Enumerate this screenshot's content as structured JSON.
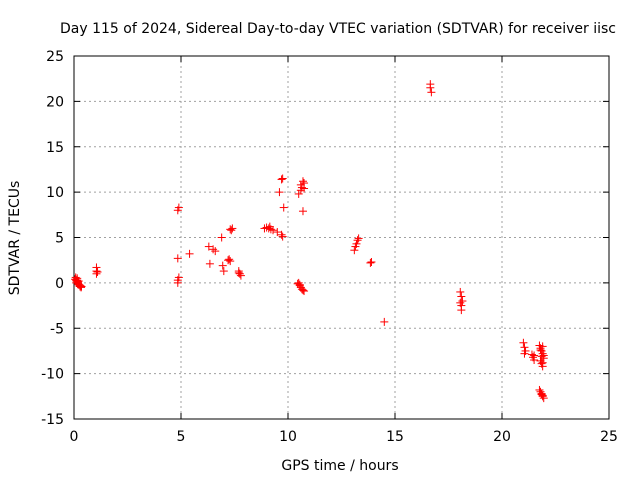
{
  "chart_data": {
    "type": "scatter",
    "title": "Day 115 of 2024, Sidereal Day-to-day VTEC variation (SDTVAR) for receiver iisc",
    "xlabel": "GPS time / hours",
    "ylabel": "SDTVAR / TECUs",
    "xlim": [
      0,
      25
    ],
    "ylim": [
      -15,
      25
    ],
    "xticks": [
      0,
      5,
      10,
      15,
      20,
      25
    ],
    "yticks": [
      -15,
      -10,
      -5,
      0,
      5,
      10,
      15,
      20,
      25
    ],
    "xtick_labels": [
      "0",
      "5",
      "10",
      "15",
      "20",
      "25"
    ],
    "ytick_labels": [
      "-15",
      "-10",
      "-5",
      "0",
      "5",
      "10",
      "15",
      "20",
      "25"
    ],
    "grid": true,
    "marker": "plus",
    "color": "#ff0000",
    "series": [
      {
        "name": "SDTVAR",
        "x": [
          0.05,
          0.08,
          0.1,
          0.12,
          0.15,
          0.18,
          0.2,
          0.22,
          0.25,
          0.28,
          0.3,
          0.33,
          0.35,
          0.1,
          0.15,
          0.2,
          1.05,
          1.05,
          1.05,
          1.1,
          4.85,
          4.9,
          4.85,
          4.9,
          4.85,
          4.85,
          5.4,
          6.3,
          6.35,
          6.5,
          6.6,
          6.9,
          6.95,
          7.0,
          7.2,
          7.25,
          7.3,
          7.35,
          7.4,
          7.3,
          7.7,
          7.75,
          7.8,
          7.7,
          8.9,
          9.0,
          9.1,
          9.15,
          9.2,
          9.3,
          9.5,
          9.6,
          9.7,
          9.75,
          9.8,
          9.7,
          9.75,
          10.45,
          10.5,
          10.55,
          10.6,
          10.65,
          10.7,
          10.75,
          10.55,
          10.6,
          10.65,
          10.7,
          10.75,
          10.5,
          10.6,
          10.7,
          10.75,
          13.1,
          13.15,
          13.2,
          13.25,
          13.3,
          13.85,
          13.9,
          14.5,
          16.65,
          16.65,
          16.7,
          18.05,
          18.1,
          18.15,
          18.1,
          18.1,
          18.05,
          21.0,
          21.05,
          21.1,
          21.05,
          21.4,
          21.45,
          21.5,
          21.5,
          21.75,
          21.8,
          21.85,
          21.9,
          21.95,
          21.8,
          21.85,
          21.9,
          21.95,
          21.8,
          21.85,
          21.9,
          21.9,
          21.75,
          21.8,
          21.85,
          21.9,
          21.95,
          21.85,
          21.9
        ],
        "y": [
          0.4,
          0.6,
          0.3,
          0.2,
          0.5,
          0.1,
          -0.1,
          0.2,
          -0.2,
          -0.4,
          -0.3,
          -0.5,
          -0.4,
          0.0,
          0.3,
          -0.2,
          1.0,
          1.3,
          1.7,
          1.2,
          8.0,
          8.3,
          2.7,
          0.6,
          0.0,
          0.3,
          3.2,
          4.0,
          2.1,
          3.7,
          3.5,
          5.0,
          1.9,
          1.3,
          2.5,
          2.6,
          2.4,
          5.8,
          6.0,
          5.9,
          1.3,
          1.0,
          0.8,
          1.1,
          6.0,
          6.1,
          6.0,
          6.2,
          5.9,
          5.8,
          5.6,
          10.0,
          11.4,
          11.5,
          8.3,
          5.3,
          5.1,
          -0.1,
          0.0,
          -0.3,
          -0.5,
          -0.7,
          -0.8,
          -0.9,
          -0.2,
          10.2,
          10.5,
          11.2,
          11.0,
          9.8,
          10.8,
          7.9,
          10.4,
          3.6,
          4.0,
          4.3,
          4.7,
          4.9,
          2.2,
          2.3,
          -4.3,
          21.9,
          21.5,
          21.0,
          -1.0,
          -1.5,
          -2.0,
          -2.5,
          -3.0,
          -2.2,
          -6.6,
          -7.1,
          -7.5,
          -7.8,
          -7.9,
          -8.2,
          -8.5,
          -8.0,
          -6.9,
          -7.2,
          -7.5,
          -7.8,
          -8.3,
          -8.6,
          -8.9,
          -9.2,
          -8.0,
          -7.4,
          -8.1,
          -8.8,
          -7.0,
          -11.8,
          -12.0,
          -12.3,
          -12.5,
          -12.7,
          -12.2,
          -12.4
        ]
      }
    ]
  }
}
